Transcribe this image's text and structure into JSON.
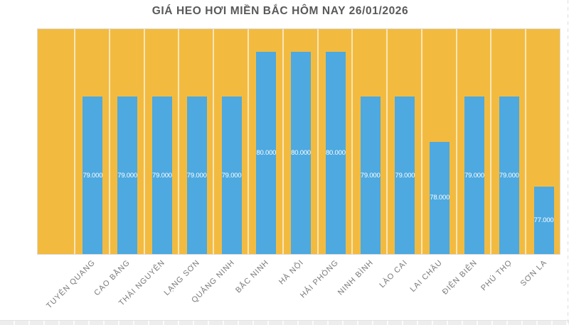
{
  "chart_data": {
    "type": "bar",
    "title": "GIÁ HEO HƠI MIỀN BẮC HÔM NAY 26/01/2026",
    "categories": [
      "TUYÊN QUANG",
      "CAO BẰNG",
      "THÁI NGUYÊN",
      "LẠNG SƠN",
      "QUẢNG NINH",
      "BẮC NINH",
      "HÀ NỘI",
      "HẢI PHÒNG",
      "NINH BÌNH",
      "LÀO CAI",
      "LAI CHÂU",
      "ĐIỆN BIÊN",
      "PHÚ THỌ",
      "SƠN LA"
    ],
    "values": [
      79000,
      79000,
      79000,
      79000,
      79000,
      80000,
      80000,
      80000,
      79000,
      79000,
      78000,
      79000,
      79000,
      77000
    ],
    "value_labels": [
      "79.000",
      "79.000",
      "79.000",
      "79.000",
      "79.000",
      "80.000",
      "80.000",
      "80.000",
      "79.000",
      "79.000",
      "78.000",
      "79.000",
      "79.000",
      "77.000"
    ],
    "xlabel": "",
    "ylabel": "",
    "ylim": [
      75500,
      80500
    ],
    "legend": "none",
    "grid": "vertical-category-separators",
    "x_label_rotation_deg": -45,
    "value_label_position": "inside-center",
    "colors": {
      "plot_background": "#F2BB40",
      "bar": "#4DA9E0",
      "value_label": "#FFFFFF",
      "axis_label": "#7A7A7A",
      "title": "#595959",
      "separator": "#F8F2DF"
    }
  }
}
